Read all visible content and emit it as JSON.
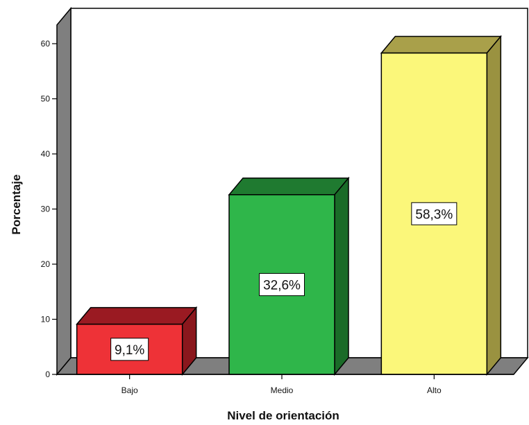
{
  "chart_data": {
    "type": "bar",
    "categories": [
      "Bajo",
      "Medio",
      "Alto"
    ],
    "values": [
      9.1,
      32.6,
      58.3
    ],
    "data_labels": [
      "9,1%",
      "32,6%",
      "58,3%"
    ],
    "title": "",
    "xlabel": "Nivel de orientación",
    "ylabel": "Porcentaje",
    "ylim": [
      0,
      60
    ],
    "yticks": [
      0,
      10,
      20,
      30,
      40,
      50,
      60
    ],
    "ytick_labels": [
      "0",
      "10",
      "20",
      "30",
      "40",
      "50",
      "60"
    ],
    "style": "3d",
    "grid": false,
    "colors": {
      "bars": [
        "#ee3237",
        "#2fb64a",
        "#fbf77a"
      ],
      "bar_tops": [
        "#9a1a22",
        "#1f7a30",
        "#a9a04a"
      ],
      "bar_sides": [
        "#8a171d",
        "#1a6b28",
        "#9a9240"
      ],
      "wall": "#7f7f7f",
      "floor": "#7f7f7f"
    }
  }
}
